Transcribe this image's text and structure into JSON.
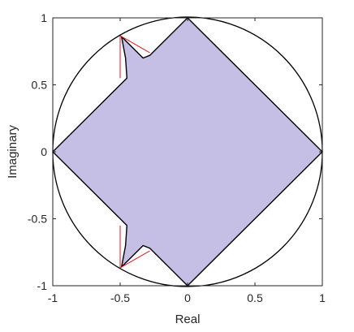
{
  "chart_data": {
    "type": "line",
    "title": "",
    "xlabel": "Real",
    "ylabel": "Imaginary",
    "xlim": [
      -1,
      1
    ],
    "ylim": [
      -1,
      1
    ],
    "grid": false,
    "box": true,
    "x_ticks": [
      -1,
      -0.5,
      0,
      0.5,
      1
    ],
    "x_tick_labels": [
      "-1",
      "-0.5",
      "0",
      "0.5",
      "1"
    ],
    "y_ticks": [
      -1,
      -0.5,
      0,
      0.5,
      1
    ],
    "y_tick_labels": [
      "-1",
      "-0.5",
      "0",
      "0.5",
      "1"
    ],
    "colors": {
      "region_fill": "#c5bfe6",
      "outline": "#000000",
      "red_line": "#e8141e",
      "circle": "#000000",
      "axes": "#262626"
    },
    "unit_circle": {
      "center": [
        0,
        0
      ],
      "radius": 1
    },
    "region_polygon": [
      [
        1,
        0
      ],
      [
        0,
        1
      ],
      [
        -0.28,
        0.72
      ],
      [
        -0.33,
        0.7
      ],
      [
        -0.49,
        0.86
      ],
      [
        -0.46,
        0.7
      ],
      [
        -0.45,
        0.55
      ],
      [
        -1,
        0
      ],
      [
        -0.45,
        -0.55
      ],
      [
        -0.46,
        -0.7
      ],
      [
        -0.49,
        -0.86
      ],
      [
        -0.33,
        -0.7
      ],
      [
        -0.28,
        -0.72
      ],
      [
        0,
        -1
      ],
      [
        1,
        0
      ]
    ],
    "red_segments": [
      {
        "points": [
          [
            -0.5,
            0.866
          ],
          [
            -0.5,
            0.55
          ]
        ]
      },
      {
        "points": [
          [
            -0.5,
            0.866
          ],
          [
            -0.28,
            0.74
          ]
        ]
      },
      {
        "points": [
          [
            -0.5,
            -0.866
          ],
          [
            -0.5,
            -0.55
          ]
        ]
      },
      {
        "points": [
          [
            -0.5,
            -0.866
          ],
          [
            -0.28,
            -0.74
          ]
        ]
      }
    ]
  }
}
